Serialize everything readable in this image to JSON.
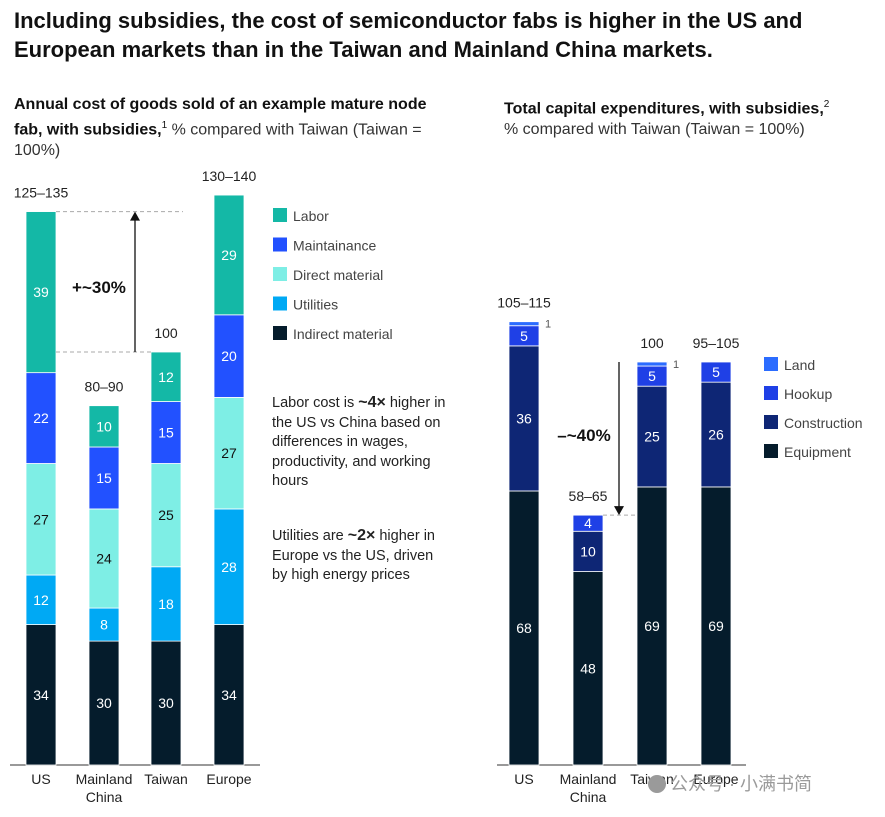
{
  "title": "Including subsidies, the cost of semiconductor fabs is higher in the US and European markets than in the Taiwan and Mainland China markets.",
  "left_subtitle": {
    "bold": "Annual cost of goods sold of an example mature node fab, with subsidies,",
    "sup": "1",
    "plain": " % compared with Taiwan (Taiwan = 100%)"
  },
  "right_subtitle": {
    "bold": "Total capital expenditures, with subsidies,",
    "sup": "2",
    "plain": "% compared with Taiwan (Taiwan = 100%)"
  },
  "notes": {
    "labor_pre": "Labor cost is ",
    "labor_bold": "~4×",
    "labor_post": " higher in the US vs China based on differences in wages, productivity, and working hours",
    "util_pre": "Utilities are ",
    "util_bold": "~2×",
    "util_post": " higher in Europe vs the US, driven by high energy prices"
  },
  "watermark": "公众号 · 小满书简",
  "chart_data": [
    {
      "type": "bar",
      "stacked": true,
      "title": "Annual cost of goods sold of an example mature node fab, with subsidies",
      "categories": [
        "US",
        "Mainland China",
        "Taiwan",
        "Europe"
      ],
      "totals": [
        "125–135",
        "80–90",
        "100",
        "130–140"
      ],
      "series": [
        {
          "name": "Indirect material",
          "color": "#051c2c",
          "values": [
            34,
            30,
            30,
            34
          ]
        },
        {
          "name": "Utilities",
          "color": "#00a9f4",
          "values": [
            12,
            8,
            18,
            28
          ]
        },
        {
          "name": "Direct material",
          "color": "#7eeee5",
          "values": [
            27,
            24,
            25,
            27
          ]
        },
        {
          "name": "Maintainance",
          "color": "#2251ff",
          "values": [
            22,
            15,
            15,
            20
          ]
        },
        {
          "name": "Labor",
          "color": "#14b8a6",
          "values": [
            39,
            10,
            12,
            29
          ]
        }
      ],
      "legend_order": [
        "Labor",
        "Maintainance",
        "Direct material",
        "Utilities",
        "Indirect material"
      ],
      "annotation": "+~30%"
    },
    {
      "type": "bar",
      "stacked": true,
      "title": "Total capital expenditures, with subsidies",
      "categories": [
        "US",
        "Mainland China",
        "Taiwan",
        "Europe"
      ],
      "totals": [
        "105–115",
        "58–65",
        "100",
        "95–105"
      ],
      "series": [
        {
          "name": "Equipment",
          "color": "#051c2c",
          "values": [
            68,
            48,
            69,
            69
          ]
        },
        {
          "name": "Construction",
          "color": "#0e2675",
          "values": [
            36,
            10,
            25,
            26
          ]
        },
        {
          "name": "Hookup",
          "color": "#1f40e6",
          "values": [
            5,
            4,
            5,
            5
          ]
        },
        {
          "name": "Land",
          "color": "#2b6cff",
          "values": [
            1,
            0,
            1,
            0
          ]
        }
      ],
      "legend_order": [
        "Land",
        "Hookup",
        "Construction",
        "Equipment"
      ],
      "annotation": "–~40%"
    }
  ]
}
